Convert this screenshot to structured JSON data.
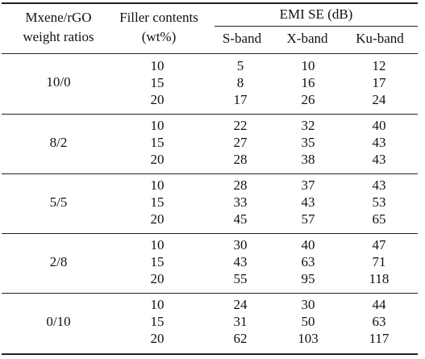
{
  "table": {
    "headers": {
      "ratio_line1": "Mxene/rGO",
      "ratio_line2": "weight ratios",
      "filler_line1": "Filler contents",
      "filler_line2": "(wt%)",
      "emi": "EMI SE (dB)",
      "s_band": "S-band",
      "x_band": "X-band",
      "ku_band": "Ku-band"
    },
    "groups": [
      {
        "ratio": "10/0",
        "rows": [
          {
            "filler": "10",
            "s": "5",
            "x": "10",
            "ku": "12"
          },
          {
            "filler": "15",
            "s": "8",
            "x": "16",
            "ku": "17"
          },
          {
            "filler": "20",
            "s": "17",
            "x": "26",
            "ku": "24"
          }
        ]
      },
      {
        "ratio": "8/2",
        "rows": [
          {
            "filler": "10",
            "s": "22",
            "x": "32",
            "ku": "40"
          },
          {
            "filler": "15",
            "s": "27",
            "x": "35",
            "ku": "43"
          },
          {
            "filler": "20",
            "s": "28",
            "x": "38",
            "ku": "43"
          }
        ]
      },
      {
        "ratio": "5/5",
        "rows": [
          {
            "filler": "10",
            "s": "28",
            "x": "37",
            "ku": "43"
          },
          {
            "filler": "15",
            "s": "33",
            "x": "43",
            "ku": "53"
          },
          {
            "filler": "20",
            "s": "45",
            "x": "57",
            "ku": "65"
          }
        ]
      },
      {
        "ratio": "2/8",
        "rows": [
          {
            "filler": "10",
            "s": "30",
            "x": "40",
            "ku": "47"
          },
          {
            "filler": "15",
            "s": "43",
            "x": "63",
            "ku": "71"
          },
          {
            "filler": "20",
            "s": "55",
            "x": "95",
            "ku": "118"
          }
        ]
      },
      {
        "ratio": "0/10",
        "rows": [
          {
            "filler": "10",
            "s": "24",
            "x": "30",
            "ku": "44"
          },
          {
            "filler": "15",
            "s": "31",
            "x": "50",
            "ku": "63"
          },
          {
            "filler": "20",
            "s": "62",
            "x": "103",
            "ku": "117"
          }
        ]
      }
    ]
  }
}
